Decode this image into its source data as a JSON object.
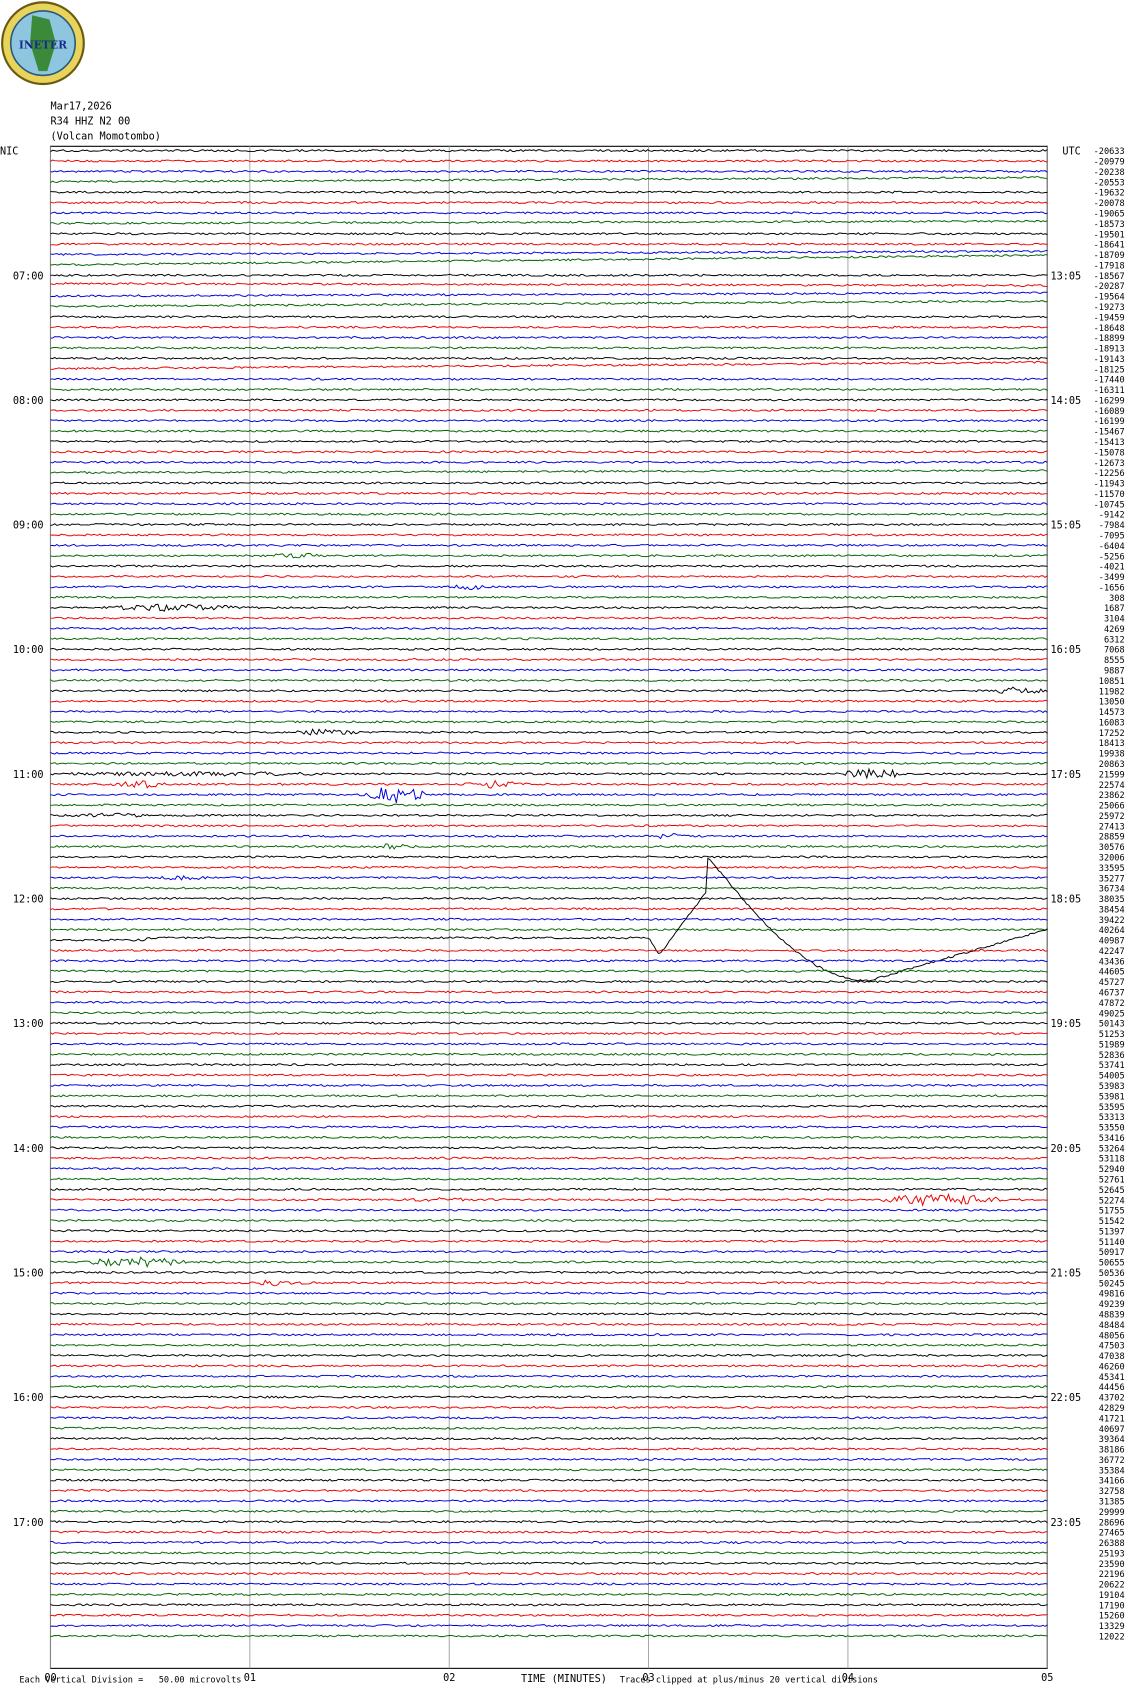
{
  "logo": "INETER",
  "header": {
    "date": "Mar17,2026",
    "channel": "R34 HHZ N2 00",
    "location": "(Volcan Momotombo)"
  },
  "left_labels": [
    "NIC",
    "07:00",
    "08:00",
    "09:00",
    "10:00",
    "11:00",
    "12:00",
    "13:00",
    "14:00",
    "15:00",
    "16:00",
    "17:00"
  ],
  "right_labels": [
    "UTC",
    "13:05",
    "14:05",
    "15:05",
    "16:05",
    "17:05",
    "18:05",
    "19:05",
    "20:05",
    "21:05",
    "22:05",
    "23:05"
  ],
  "offsets": [
    -20633,
    -20979,
    -20238,
    -20553,
    -19632,
    -20078,
    -19065,
    -18573,
    -19501,
    -18641,
    -18709,
    -17918,
    -18567,
    -20287,
    -19564,
    -19273,
    -19459,
    -18648,
    -18899,
    -18913,
    -19143,
    -18125,
    -17440,
    -16311,
    -16299,
    -16089,
    -16199,
    -15467,
    -15413,
    -15078,
    -12673,
    -12256,
    -11943,
    -11570,
    -10745,
    -9142,
    -7984,
    -7095,
    -6404,
    -5256,
    -4021,
    -3499,
    -1656,
    308,
    1687,
    3104,
    4269,
    6312,
    7068,
    8555,
    9887,
    10851,
    11982,
    13050,
    14573,
    16083,
    17252,
    18413,
    19938,
    20863,
    21599,
    22574,
    23862,
    25066,
    25972,
    27413,
    28859,
    30576,
    32006,
    33595,
    35277,
    36734,
    38035,
    38454,
    39422,
    40264,
    40987,
    42247,
    43436,
    44605,
    45727,
    46737,
    47872,
    49025,
    50143,
    51253,
    51989,
    52836,
    53741,
    54005,
    53983,
    53981,
    53595,
    53313,
    53550,
    53416,
    53264,
    53118,
    52940,
    52761,
    52645,
    52274,
    51755,
    51542,
    51397,
    51140,
    50917,
    50655,
    50536,
    50245,
    49816,
    49239,
    48839,
    48484,
    48056,
    47503,
    47038,
    46260,
    45341,
    44456,
    43702,
    42829,
    41721,
    40697,
    39364,
    38186,
    36772,
    35384,
    34166,
    32758,
    31385,
    29999,
    28696,
    27465,
    26388,
    25193,
    23590,
    22196,
    20622,
    19104,
    17190,
    15260,
    13329,
    12022
  ],
  "x_axis": {
    "ticks": [
      "00",
      "01",
      "02",
      "03",
      "04",
      "05"
    ],
    "label": "TIME (MINUTES)"
  },
  "footer": {
    "scale": "Each Vertical Division =   50.00 microvolts",
    "clip": "Traces clipped at plus/minus 20 vertical divisions"
  }
}
